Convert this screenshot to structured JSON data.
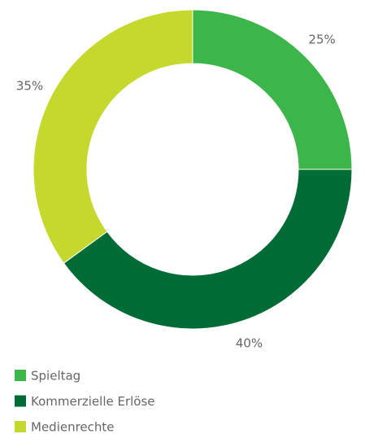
{
  "chart_data": {
    "type": "pie",
    "categories": [
      "Spieltag",
      "Kommerzielle Erlöse",
      "Medienrechte"
    ],
    "values": [
      25,
      40,
      35
    ],
    "value_labels": [
      "25%",
      "40%",
      "35%"
    ],
    "colors": [
      "#3cb54a",
      "#006b35",
      "#c5d82e"
    ]
  }
}
